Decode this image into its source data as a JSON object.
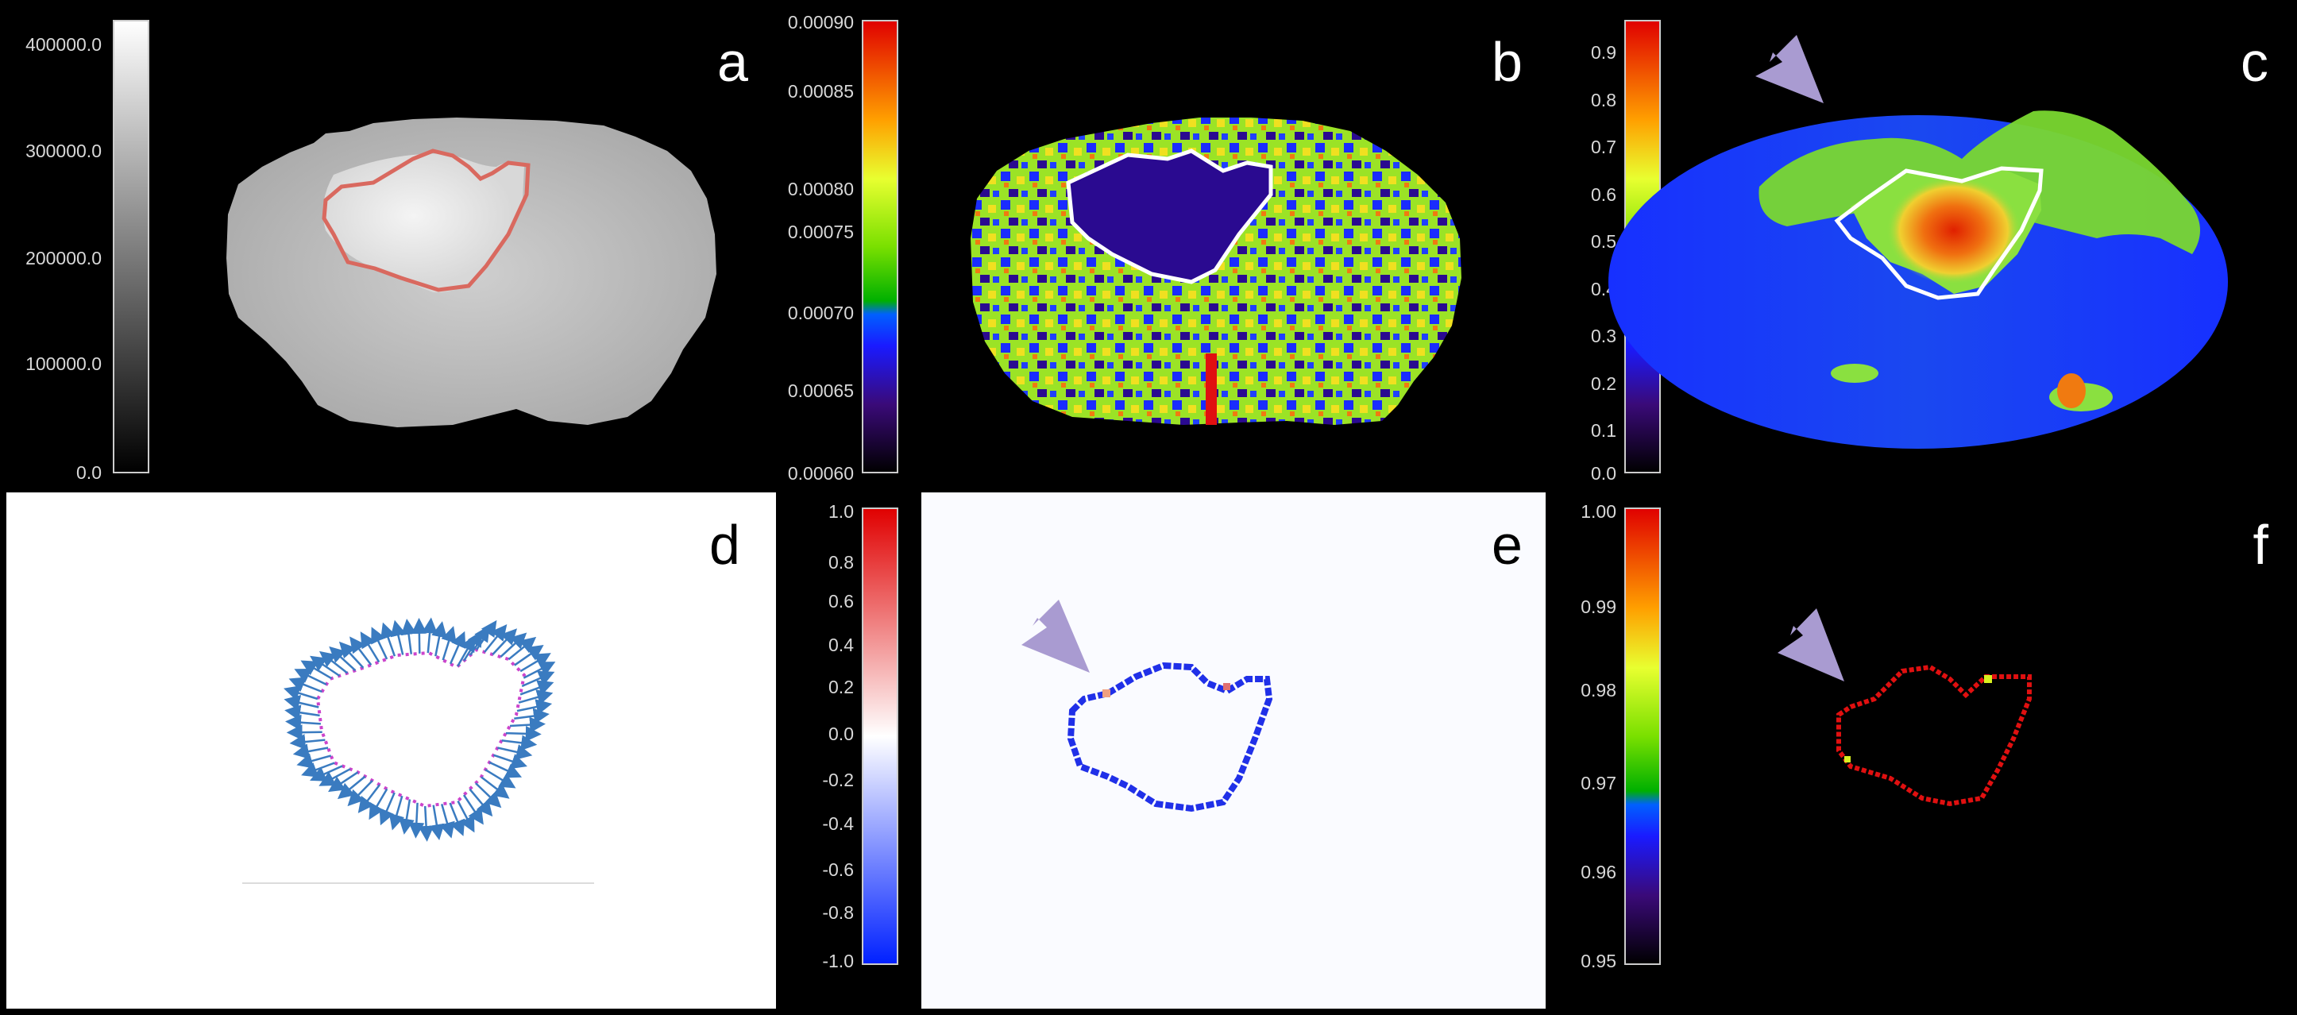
{
  "panels": {
    "a": {
      "label": "a",
      "colorbar_ticks": [
        "400000.0",
        "300000.0",
        "200000.0",
        "100000.0",
        "0.0"
      ],
      "colormap": "grayscale",
      "roi_color": "#d9695f"
    },
    "b": {
      "label": "b",
      "colorbar_ticks": [
        "0.00090",
        "0.00085",
        "0.00080",
        "0.00075",
        "0.00070",
        "0.00065",
        "0.00060"
      ],
      "colormap": "spectrum",
      "roi_color": "#ffffff"
    },
    "c": {
      "label": "c",
      "colorbar_ticks": [
        "0.9",
        "0.8",
        "0.7",
        "0.6",
        "0.5",
        "0.4",
        "0.3",
        "0.2",
        "0.1",
        "0.0"
      ],
      "colormap": "spectrum",
      "roi_color": "#ffffff"
    },
    "d": {
      "label": "d",
      "contour_color": "#cc44cc",
      "arrow_color": "#3a7bc0"
    },
    "e": {
      "label": "e",
      "colorbar_ticks": [
        "1.0",
        "0.8",
        "0.6",
        "0.4",
        "0.2",
        "0.0",
        "-0.2",
        "-0.4",
        "-0.6",
        "-0.8",
        "-1.0"
      ],
      "colormap": "blue-white-red"
    },
    "f": {
      "label": "f",
      "colorbar_ticks": [
        "1.00",
        "0.99",
        "0.98",
        "0.97",
        "0.96",
        "0.95"
      ],
      "colormap": "spectrum"
    }
  },
  "pointer_color": "#a99bd1",
  "pointer_icon": "arrow-pointer-icon"
}
